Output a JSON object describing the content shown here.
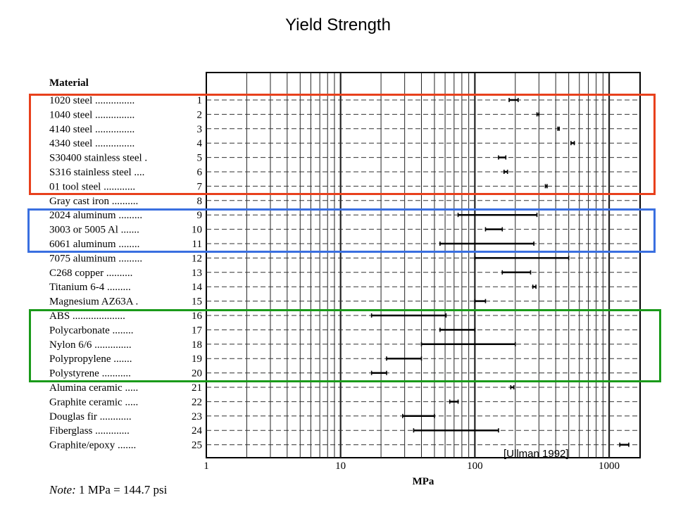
{
  "title": "Yield Strength",
  "citation": "[Ullman 1992]",
  "note": {
    "label": "Note:",
    "text": " 1 MPa = 144.7 psi"
  },
  "colors": {
    "red_box": "#e8401c",
    "blue_box": "#3a6fe0",
    "green_box": "#1a9a1a"
  },
  "groups": [
    {
      "name": "metals-highlight",
      "color": "#e8401c",
      "from_row": 1,
      "to_row": 7
    },
    {
      "name": "aluminum-highlight",
      "color": "#3a6fe0",
      "from_row": 9,
      "to_row": 11
    },
    {
      "name": "polymers-highlight",
      "color": "#1a9a1a",
      "from_row": 16,
      "to_row": 20
    }
  ],
  "chart_data": {
    "type": "range-bar",
    "header": "Material",
    "xlabel": "MPa",
    "xscale": "log",
    "xlim": [
      1,
      1700
    ],
    "xticks": [
      1,
      10,
      100,
      1000
    ],
    "grid": true,
    "rows": [
      {
        "label": "1020 steel ...............",
        "number": "1",
        "low": 180,
        "high": 210
      },
      {
        "label": "1040 steel ...............",
        "number": "2",
        "low": 290,
        "high": 300
      },
      {
        "label": "4140 steel ...............",
        "number": "3",
        "low": 415,
        "high": 425
      },
      {
        "label": "4340 steel ...............",
        "number": "4",
        "low": 520,
        "high": 550
      },
      {
        "label": "S30400 stainless steel .",
        "number": "5",
        "low": 150,
        "high": 170
      },
      {
        "label": "S316 stainless steel ....",
        "number": "6",
        "low": 165,
        "high": 175
      },
      {
        "label": "01 tool steel ............",
        "number": "7",
        "low": 335,
        "high": 345
      },
      {
        "label": "Gray cast iron ..........",
        "number": "8",
        "low": 0,
        "high": 0
      },
      {
        "label": "2024 aluminum .........",
        "number": "9",
        "low": 75,
        "high": 290
      },
      {
        "label": "3003 or 5005 Al .......",
        "number": "10",
        "low": 120,
        "high": 160
      },
      {
        "label": "6061 aluminum ........",
        "number": "11",
        "low": 55,
        "high": 275
      },
      {
        "label": "7075 aluminum .........",
        "number": "12",
        "low": 100,
        "high": 500
      },
      {
        "label": "C268 copper ..........",
        "number": "13",
        "low": 160,
        "high": 260
      },
      {
        "label": "Titanium 6-4 .........",
        "number": "14",
        "low": 270,
        "high": 285
      },
      {
        "label": "Magnesium AZ63A .",
        "number": "15",
        "low": 100,
        "high": 120
      },
      {
        "label": "ABS ....................",
        "number": "16",
        "low": 17,
        "high": 61
      },
      {
        "label": "Polycarbonate ........",
        "number": "17",
        "low": 55,
        "high": 100
      },
      {
        "label": "Nylon 6/6 ..............",
        "number": "18",
        "low": 40,
        "high": 200
      },
      {
        "label": "Polypropylene .......",
        "number": "19",
        "low": 22,
        "high": 40
      },
      {
        "label": "Polystyrene ...........",
        "number": "20",
        "low": 17,
        "high": 22
      },
      {
        "label": "Alumina ceramic .....",
        "number": "21",
        "low": 185,
        "high": 195
      },
      {
        "label": "Graphite ceramic .....",
        "number": "22",
        "low": 65,
        "high": 75
      },
      {
        "label": "Douglas fir ............",
        "number": "23",
        "low": 29,
        "high": 50
      },
      {
        "label": "Fiberglass .............",
        "number": "24",
        "low": 35,
        "high": 150
      },
      {
        "label": "Graphite/epoxy .......",
        "number": "25",
        "low": 1200,
        "high": 1400
      }
    ]
  }
}
